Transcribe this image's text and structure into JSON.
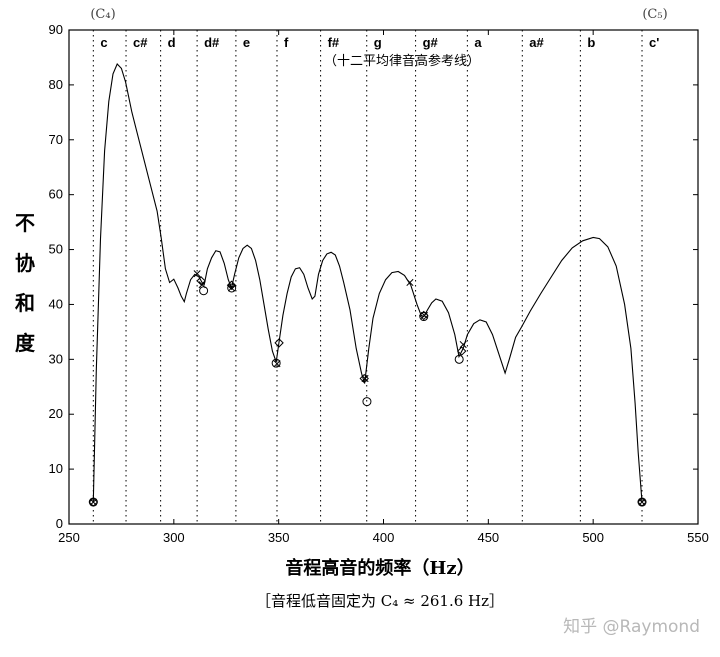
{
  "chart_data": {
    "type": "line",
    "xlabel": "音程高音的频率（Hz）",
    "ylabel": "不协和度",
    "subnote": "［音程低音固定为 C₄ ≈ 261.6 Hz］",
    "reference_caption": "（十二平均律音高参考线）",
    "xlim": [
      250,
      550
    ],
    "ylim": [
      0,
      90
    ],
    "xticks": [
      250,
      300,
      350,
      400,
      450,
      500,
      550
    ],
    "yticks": [
      0,
      10,
      20,
      30,
      40,
      50,
      60,
      70,
      80,
      90
    ],
    "reference_lines": [
      {
        "note": "c",
        "x": 261.6
      },
      {
        "note": "c#",
        "x": 277.2
      },
      {
        "note": "d",
        "x": 293.7
      },
      {
        "note": "d#",
        "x": 311.1
      },
      {
        "note": "e",
        "x": 329.6
      },
      {
        "note": "f",
        "x": 349.2
      },
      {
        "note": "f#",
        "x": 370.0
      },
      {
        "note": "g",
        "x": 392.0
      },
      {
        "note": "g#",
        "x": 415.3
      },
      {
        "note": "a",
        "x": 440.0
      },
      {
        "note": "a#",
        "x": 466.2
      },
      {
        "note": "b",
        "x": 493.9
      },
      {
        "note": "c'",
        "x": 523.3
      }
    ],
    "edge_notes": {
      "left": "(C₄)",
      "right": "(C₅)"
    },
    "series": [
      {
        "values": [
          [
            261.6,
            4
          ],
          [
            263,
            28
          ],
          [
            265,
            52
          ],
          [
            267,
            68
          ],
          [
            269,
            77
          ],
          [
            271,
            82
          ],
          [
            273,
            83.8
          ],
          [
            275,
            83
          ],
          [
            277,
            80.5
          ],
          [
            280,
            75
          ],
          [
            284,
            69
          ],
          [
            288,
            63
          ],
          [
            292,
            57
          ],
          [
            294,
            52
          ],
          [
            296,
            46.5
          ],
          [
            298,
            44
          ],
          [
            300,
            44.6
          ],
          [
            302,
            43
          ],
          [
            303.5,
            41.5
          ],
          [
            305,
            40.5
          ],
          [
            306,
            42
          ],
          [
            308,
            44.5
          ],
          [
            310,
            45.5
          ],
          [
            312,
            45
          ],
          [
            313.5,
            44
          ],
          [
            314.5,
            43.6
          ],
          [
            316,
            46.5
          ],
          [
            318,
            48.5
          ],
          [
            320,
            49.8
          ],
          [
            322,
            49.6
          ],
          [
            324,
            47.5
          ],
          [
            326,
            44.5
          ],
          [
            327.5,
            43
          ],
          [
            329,
            45.5
          ],
          [
            331,
            48.5
          ],
          [
            333,
            50.2
          ],
          [
            335,
            50.8
          ],
          [
            337,
            50.2
          ],
          [
            339,
            48
          ],
          [
            341,
            44.5
          ],
          [
            343,
            40
          ],
          [
            345,
            35.5
          ],
          [
            347,
            31.5
          ],
          [
            348.8,
            29.5
          ],
          [
            350.5,
            34
          ],
          [
            352,
            38
          ],
          [
            354,
            42
          ],
          [
            356,
            45
          ],
          [
            358,
            46.5
          ],
          [
            360,
            46.7
          ],
          [
            362,
            45.5
          ],
          [
            364,
            43
          ],
          [
            366,
            41
          ],
          [
            367.3,
            41.5
          ],
          [
            369,
            45.5
          ],
          [
            371,
            48
          ],
          [
            373,
            49.2
          ],
          [
            375,
            49.5
          ],
          [
            377,
            49
          ],
          [
            379,
            47
          ],
          [
            381,
            44
          ],
          [
            384,
            39
          ],
          [
            387,
            32
          ],
          [
            389.5,
            27.5
          ],
          [
            391,
            25.6
          ],
          [
            393,
            32
          ],
          [
            395,
            37.5
          ],
          [
            398,
            42
          ],
          [
            401,
            44.5
          ],
          [
            404,
            45.8
          ],
          [
            407,
            46
          ],
          [
            410,
            45.3
          ],
          [
            413,
            43.5
          ],
          [
            416,
            40
          ],
          [
            418,
            38
          ],
          [
            419.2,
            37.8
          ],
          [
            421,
            39
          ],
          [
            423,
            40.3
          ],
          [
            425,
            41
          ],
          [
            428,
            40.6
          ],
          [
            431,
            38.5
          ],
          [
            434,
            34.5
          ],
          [
            436,
            30.5
          ],
          [
            438,
            32
          ],
          [
            440,
            34.5
          ],
          [
            443,
            36.5
          ],
          [
            446,
            37.2
          ],
          [
            449,
            36.8
          ],
          [
            452,
            34.5
          ],
          [
            455,
            31
          ],
          [
            458,
            27.5
          ],
          [
            460,
            30
          ],
          [
            463,
            34
          ],
          [
            466,
            36
          ],
          [
            470,
            38.8
          ],
          [
            475,
            42
          ],
          [
            480,
            45
          ],
          [
            485,
            48
          ],
          [
            490,
            50.3
          ],
          [
            495,
            51.6
          ],
          [
            500,
            52.2
          ],
          [
            503,
            52
          ],
          [
            507,
            50.5
          ],
          [
            511,
            47
          ],
          [
            515,
            40
          ],
          [
            518,
            32
          ],
          [
            520,
            22
          ],
          [
            521.5,
            13
          ],
          [
            523.3,
            4
          ]
        ]
      }
    ],
    "markers_x": [
      [
        261.6,
        4
      ],
      [
        311.1,
        45.6
      ],
      [
        313.5,
        43.6
      ],
      [
        327.5,
        43
      ],
      [
        349.2,
        29.2
      ],
      [
        391.2,
        26.5
      ],
      [
        412.6,
        44
      ],
      [
        419.5,
        38
      ],
      [
        438,
        32.7
      ],
      [
        523.3,
        4
      ]
    ],
    "markers_o": [
      [
        261.6,
        4
      ],
      [
        314.2,
        42.5
      ],
      [
        327.6,
        43
      ],
      [
        348.8,
        29.3
      ],
      [
        392.1,
        22.3
      ],
      [
        419.2,
        37.8
      ],
      [
        436.1,
        30
      ],
      [
        523.3,
        4
      ]
    ],
    "markers_diamond": [
      [
        261.6,
        4
      ],
      [
        313,
        44.3
      ],
      [
        327.5,
        43.5
      ],
      [
        350.2,
        33
      ],
      [
        390.8,
        26.5
      ],
      [
        419.2,
        38
      ],
      [
        437.3,
        31.5
      ],
      [
        523.3,
        4
      ]
    ]
  },
  "watermark": "知乎 @Raymond"
}
